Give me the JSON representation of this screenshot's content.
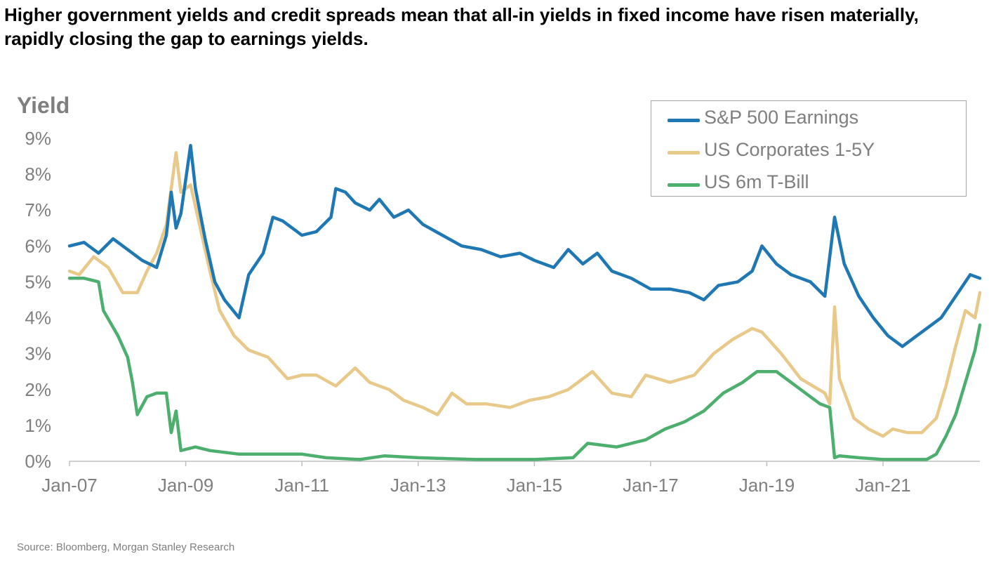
{
  "title": "Higher government yields and credit spreads mean that all-in yields in fixed income have risen materially, rapidly closing the gap to earnings yields.",
  "source": "Source: Bloomberg, Morgan Stanley Research",
  "chart_data": {
    "type": "line",
    "ylabel": "Yield",
    "ylim": [
      0,
      9
    ],
    "y_unit": "%",
    "xlim": [
      "2007-01",
      "2022-09"
    ],
    "y_ticks": [
      "0%",
      "1%",
      "2%",
      "3%",
      "4%",
      "5%",
      "6%",
      "7%",
      "8%",
      "9%"
    ],
    "x_ticks": [
      "Jan-07",
      "Jan-09",
      "Jan-11",
      "Jan-13",
      "Jan-15",
      "Jan-17",
      "Jan-19",
      "Jan-21"
    ],
    "legend_position": "top-right",
    "grid": false,
    "series": [
      {
        "name": "S&P 500 Earnings",
        "color": "#1f77b4",
        "points": [
          [
            "2007-01",
            6.0
          ],
          [
            "2007-04",
            6.1
          ],
          [
            "2007-07",
            5.8
          ],
          [
            "2007-10",
            6.2
          ],
          [
            "2008-01",
            5.9
          ],
          [
            "2008-04",
            5.6
          ],
          [
            "2008-07",
            5.4
          ],
          [
            "2008-09",
            6.3
          ],
          [
            "2008-10",
            7.5
          ],
          [
            "2008-11",
            6.5
          ],
          [
            "2008-12",
            6.9
          ],
          [
            "2009-02",
            8.8
          ],
          [
            "2009-03",
            7.6
          ],
          [
            "2009-05",
            6.2
          ],
          [
            "2009-07",
            5.0
          ],
          [
            "2009-09",
            4.5
          ],
          [
            "2009-12",
            4.0
          ],
          [
            "2010-02",
            5.2
          ],
          [
            "2010-05",
            5.8
          ],
          [
            "2010-07",
            6.8
          ],
          [
            "2010-09",
            6.7
          ],
          [
            "2011-01",
            6.3
          ],
          [
            "2011-04",
            6.4
          ],
          [
            "2011-07",
            6.8
          ],
          [
            "2011-08",
            7.6
          ],
          [
            "2011-10",
            7.5
          ],
          [
            "2011-12",
            7.2
          ],
          [
            "2012-03",
            7.0
          ],
          [
            "2012-05",
            7.3
          ],
          [
            "2012-08",
            6.8
          ],
          [
            "2012-11",
            7.0
          ],
          [
            "2013-02",
            6.6
          ],
          [
            "2013-06",
            6.3
          ],
          [
            "2013-10",
            6.0
          ],
          [
            "2014-02",
            5.9
          ],
          [
            "2014-06",
            5.7
          ],
          [
            "2014-10",
            5.8
          ],
          [
            "2015-01",
            5.6
          ],
          [
            "2015-05",
            5.4
          ],
          [
            "2015-08",
            5.9
          ],
          [
            "2015-11",
            5.5
          ],
          [
            "2016-02",
            5.8
          ],
          [
            "2016-05",
            5.3
          ],
          [
            "2016-09",
            5.1
          ],
          [
            "2017-01",
            4.8
          ],
          [
            "2017-05",
            4.8
          ],
          [
            "2017-09",
            4.7
          ],
          [
            "2017-12",
            4.5
          ],
          [
            "2018-03",
            4.9
          ],
          [
            "2018-07",
            5.0
          ],
          [
            "2018-10",
            5.3
          ],
          [
            "2018-12",
            6.0
          ],
          [
            "2019-03",
            5.5
          ],
          [
            "2019-06",
            5.2
          ],
          [
            "2019-10",
            5.0
          ],
          [
            "2020-01",
            4.6
          ],
          [
            "2020-03",
            6.8
          ],
          [
            "2020-05",
            5.5
          ],
          [
            "2020-08",
            4.6
          ],
          [
            "2020-11",
            4.0
          ],
          [
            "2021-02",
            3.5
          ],
          [
            "2021-05",
            3.2
          ],
          [
            "2021-08",
            3.5
          ],
          [
            "2021-11",
            3.8
          ],
          [
            "2022-01",
            4.0
          ],
          [
            "2022-03",
            4.4
          ],
          [
            "2022-05",
            4.8
          ],
          [
            "2022-07",
            5.2
          ],
          [
            "2022-09",
            5.1
          ]
        ]
      },
      {
        "name": "US Corporates 1-5Y",
        "color": "#e8c98a",
        "points": [
          [
            "2007-01",
            5.3
          ],
          [
            "2007-03",
            5.2
          ],
          [
            "2007-06",
            5.7
          ],
          [
            "2007-09",
            5.4
          ],
          [
            "2007-12",
            4.7
          ],
          [
            "2008-03",
            4.7
          ],
          [
            "2008-05",
            5.3
          ],
          [
            "2008-07",
            5.8
          ],
          [
            "2008-09",
            6.6
          ],
          [
            "2008-11",
            8.6
          ],
          [
            "2008-12",
            7.5
          ],
          [
            "2009-02",
            7.7
          ],
          [
            "2009-04",
            6.5
          ],
          [
            "2009-06",
            5.3
          ],
          [
            "2009-08",
            4.2
          ],
          [
            "2009-11",
            3.5
          ],
          [
            "2010-02",
            3.1
          ],
          [
            "2010-06",
            2.9
          ],
          [
            "2010-10",
            2.3
          ],
          [
            "2011-01",
            2.4
          ],
          [
            "2011-04",
            2.4
          ],
          [
            "2011-08",
            2.1
          ],
          [
            "2011-12",
            2.6
          ],
          [
            "2012-03",
            2.2
          ],
          [
            "2012-07",
            2.0
          ],
          [
            "2012-10",
            1.7
          ],
          [
            "2013-02",
            1.5
          ],
          [
            "2013-05",
            1.3
          ],
          [
            "2013-08",
            1.9
          ],
          [
            "2013-11",
            1.6
          ],
          [
            "2014-03",
            1.6
          ],
          [
            "2014-08",
            1.5
          ],
          [
            "2014-12",
            1.7
          ],
          [
            "2015-04",
            1.8
          ],
          [
            "2015-08",
            2.0
          ],
          [
            "2016-01",
            2.5
          ],
          [
            "2016-05",
            1.9
          ],
          [
            "2016-09",
            1.8
          ],
          [
            "2016-12",
            2.4
          ],
          [
            "2017-05",
            2.2
          ],
          [
            "2017-10",
            2.4
          ],
          [
            "2018-02",
            3.0
          ],
          [
            "2018-06",
            3.4
          ],
          [
            "2018-10",
            3.7
          ],
          [
            "2018-12",
            3.6
          ],
          [
            "2019-04",
            3.0
          ],
          [
            "2019-08",
            2.3
          ],
          [
            "2020-01",
            1.9
          ],
          [
            "2020-02",
            1.6
          ],
          [
            "2020-03",
            4.3
          ],
          [
            "2020-04",
            2.3
          ],
          [
            "2020-07",
            1.2
          ],
          [
            "2020-10",
            0.9
          ],
          [
            "2021-01",
            0.7
          ],
          [
            "2021-03",
            0.9
          ],
          [
            "2021-06",
            0.8
          ],
          [
            "2021-09",
            0.8
          ],
          [
            "2021-12",
            1.2
          ],
          [
            "2022-02",
            2.1
          ],
          [
            "2022-04",
            3.2
          ],
          [
            "2022-06",
            4.2
          ],
          [
            "2022-08",
            4.0
          ],
          [
            "2022-09",
            4.7
          ]
        ]
      },
      {
        "name": "US 6m T-Bill",
        "color": "#4caf6e",
        "points": [
          [
            "2007-01",
            5.1
          ],
          [
            "2007-04",
            5.1
          ],
          [
            "2007-07",
            5.0
          ],
          [
            "2007-08",
            4.2
          ],
          [
            "2007-11",
            3.5
          ],
          [
            "2008-01",
            2.9
          ],
          [
            "2008-02",
            2.2
          ],
          [
            "2008-03",
            1.3
          ],
          [
            "2008-05",
            1.8
          ],
          [
            "2008-07",
            1.9
          ],
          [
            "2008-09",
            1.9
          ],
          [
            "2008-10",
            0.8
          ],
          [
            "2008-11",
            1.4
          ],
          [
            "2008-12",
            0.3
          ],
          [
            "2009-03",
            0.4
          ],
          [
            "2009-06",
            0.3
          ],
          [
            "2009-12",
            0.2
          ],
          [
            "2010-06",
            0.2
          ],
          [
            "2011-01",
            0.2
          ],
          [
            "2011-06",
            0.1
          ],
          [
            "2012-01",
            0.05
          ],
          [
            "2012-06",
            0.15
          ],
          [
            "2013-01",
            0.1
          ],
          [
            "2014-01",
            0.05
          ],
          [
            "2015-01",
            0.05
          ],
          [
            "2015-09",
            0.1
          ],
          [
            "2015-12",
            0.5
          ],
          [
            "2016-06",
            0.4
          ],
          [
            "2016-12",
            0.6
          ],
          [
            "2017-04",
            0.9
          ],
          [
            "2017-08",
            1.1
          ],
          [
            "2017-12",
            1.4
          ],
          [
            "2018-04",
            1.9
          ],
          [
            "2018-08",
            2.2
          ],
          [
            "2018-11",
            2.5
          ],
          [
            "2019-03",
            2.5
          ],
          [
            "2019-06",
            2.2
          ],
          [
            "2019-09",
            1.9
          ],
          [
            "2019-12",
            1.6
          ],
          [
            "2020-02",
            1.5
          ],
          [
            "2020-03",
            0.1
          ],
          [
            "2020-04",
            0.15
          ],
          [
            "2020-08",
            0.1
          ],
          [
            "2021-01",
            0.05
          ],
          [
            "2021-06",
            0.05
          ],
          [
            "2021-10",
            0.05
          ],
          [
            "2021-12",
            0.2
          ],
          [
            "2022-02",
            0.7
          ],
          [
            "2022-04",
            1.3
          ],
          [
            "2022-06",
            2.2
          ],
          [
            "2022-08",
            3.1
          ],
          [
            "2022-09",
            3.8
          ]
        ]
      }
    ]
  }
}
